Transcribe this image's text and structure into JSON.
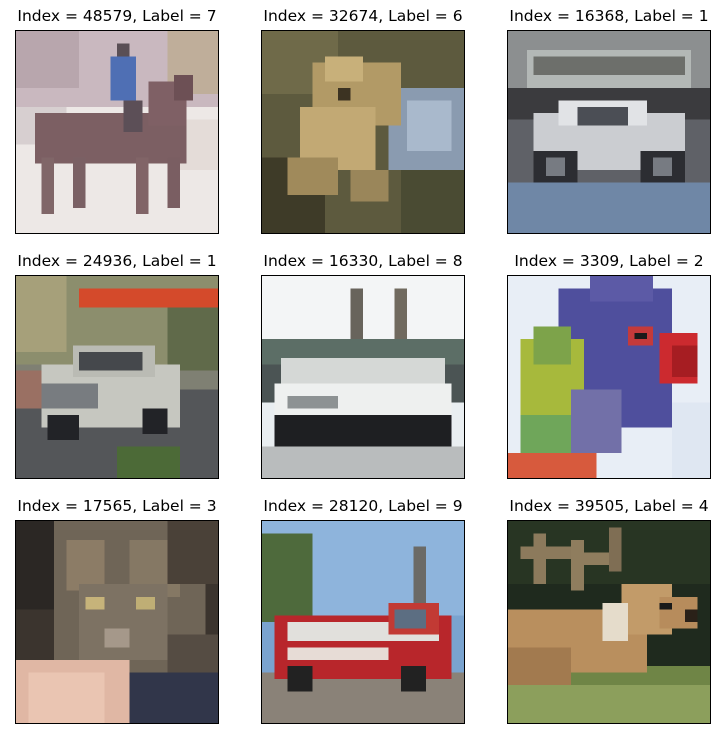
{
  "panels": [
    {
      "title": "Index = 48579, Label = 7",
      "subject": "horse with rider"
    },
    {
      "title": "Index = 32674, Label = 6",
      "subject": "frog"
    },
    {
      "title": "Index = 16368, Label = 1",
      "subject": "silver sports car"
    },
    {
      "title": "Index = 24936, Label = 1",
      "subject": "silver sedan on street"
    },
    {
      "title": "Index = 16330, Label = 8",
      "subject": "ship"
    },
    {
      "title": "Index = 3309, Label = 2",
      "subject": "parrot"
    },
    {
      "title": "Index = 17565, Label = 3",
      "subject": "tabby cat"
    },
    {
      "title": "Index = 28120, Label = 9",
      "subject": "red fire truck"
    },
    {
      "title": "Index = 39505, Label = 4",
      "subject": "deer with antlers"
    }
  ]
}
